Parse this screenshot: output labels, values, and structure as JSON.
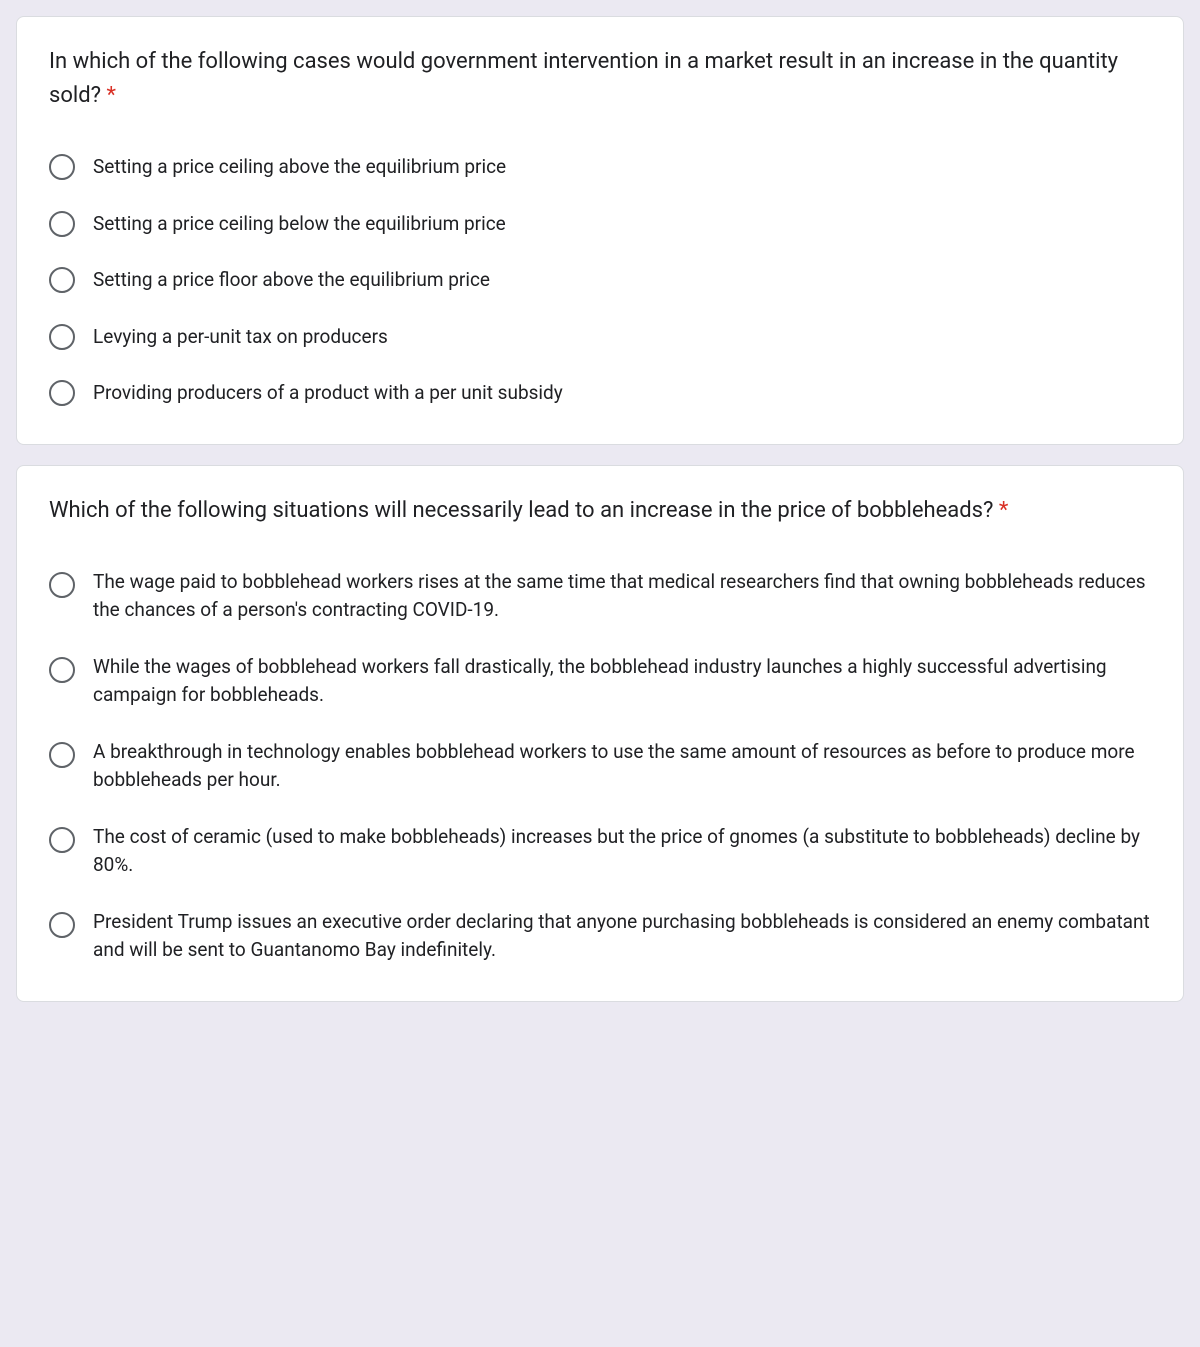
{
  "colors": {
    "page_bg": "#ebe9f2",
    "card_bg": "#ffffff",
    "card_border": "#dadce0",
    "text": "#202124",
    "radio_border": "#5f6368",
    "required": "#d93025"
  },
  "questions": [
    {
      "prompt": "In which of the following cases would government intervention in a market result in an increase in the quantity sold?",
      "required_mark": "*",
      "options": [
        "Setting a price ceiling above the equilibrium price",
        "Setting a price ceiling below the equilibrium price",
        "Setting a price floor above the equilibrium price",
        "Levying a per-unit tax on producers",
        "Providing producers of a product with a per unit subsidy"
      ],
      "multiline": false
    },
    {
      "prompt": "Which of the following situations will necessarily lead to an increase in the price of bobbleheads?",
      "required_mark": "*",
      "options": [
        "The wage paid to bobblehead workers rises at the same time that medical researchers find that owning bobbleheads reduces the chances of a person's contracting COVID-19.",
        "While the wages of bobblehead workers fall drastically, the bobblehead industry launches a highly successful advertising campaign for bobbleheads.",
        "A breakthrough in technology enables bobblehead workers to use the same amount of resources as before to produce more bobbleheads per hour.",
        "The cost of ceramic (used to make bobbleheads) increases but the price of gnomes (a substitute to bobbleheads) decline by 80%.",
        "President Trump issues an executive order declaring that anyone purchasing bobbleheads is considered an enemy combatant and will be sent to Guantanomo Bay indefinitely."
      ],
      "multiline": true
    }
  ]
}
